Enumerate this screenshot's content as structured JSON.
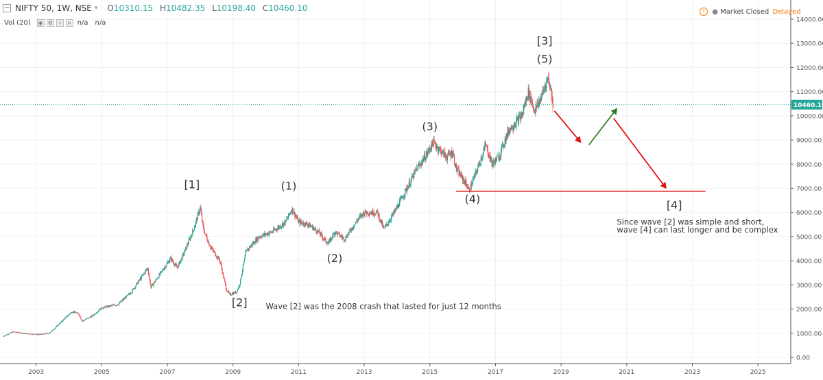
{
  "header": {
    "symbol": "NIFTY 50, 1W, NSE",
    "open_label": "O",
    "open": "10310.15",
    "high_label": "H",
    "high": "10482.35",
    "low_label": "L",
    "low": "10198.40",
    "close_label": "C",
    "close": "10460.10",
    "vol_label": "Vol (20)",
    "vol_value_1": "n/a",
    "vol_value_2": "n/a"
  },
  "market_status": {
    "icon": "clock-alert-icon",
    "closed": "Market Closed",
    "delayed": "Delayed",
    "delayed_color": "#f57c00"
  },
  "colors": {
    "up": "#26a69a",
    "down": "#ef5350",
    "last_price_line": "#26a69a",
    "arrow_down": "#e01010",
    "arrow_up": "#2e7d1f",
    "support_line": "#e01010"
  },
  "chart_data": {
    "type": "candlestick",
    "symbol": "NIFTY 50",
    "interval": "1W",
    "exchange": "NSE",
    "x_ticks": [
      "2003",
      "2005",
      "2007",
      "2009",
      "2011",
      "2013",
      "2015",
      "2017",
      "2019",
      "2021",
      "2023",
      "2025"
    ],
    "y_ticks": [
      "0.00",
      "1000.00",
      "2000.00",
      "3000.00",
      "4000.00",
      "5000.00",
      "6000.00",
      "7000.00",
      "8000.00",
      "9000.00",
      "10000.00",
      "11000.00",
      "12000.00",
      "13000.00",
      "14000.00"
    ],
    "ylim": [
      0,
      14000
    ],
    "xlim": [
      2001.9,
      2026.0
    ],
    "last_price": 10460.1,
    "last_price_label": "10460.10",
    "price_path": [
      [
        2002.0,
        880
      ],
      [
        2002.3,
        1060
      ],
      [
        2002.7,
        980
      ],
      [
        2003.1,
        950
      ],
      [
        2003.4,
        1000
      ],
      [
        2003.6,
        1250
      ],
      [
        2003.9,
        1650
      ],
      [
        2004.1,
        1900
      ],
      [
        2004.3,
        1800
      ],
      [
        2004.4,
        1500
      ],
      [
        2004.7,
        1700
      ],
      [
        2005.0,
        2050
      ],
      [
        2005.5,
        2200
      ],
      [
        2005.9,
        2700
      ],
      [
        2006.3,
        3500
      ],
      [
        2006.4,
        3700
      ],
      [
        2006.5,
        2900
      ],
      [
        2006.8,
        3500
      ],
      [
        2007.1,
        4100
      ],
      [
        2007.3,
        3700
      ],
      [
        2007.5,
        4300
      ],
      [
        2007.8,
        5300
      ],
      [
        2008.0,
        6200
      ],
      [
        2008.1,
        5300
      ],
      [
        2008.3,
        4600
      ],
      [
        2008.6,
        4000
      ],
      [
        2008.8,
        2800
      ],
      [
        2008.9,
        2600
      ],
      [
        2009.1,
        2700
      ],
      [
        2009.2,
        3000
      ],
      [
        2009.4,
        4400
      ],
      [
        2009.8,
        5000
      ],
      [
        2010.2,
        5200
      ],
      [
        2010.6,
        5600
      ],
      [
        2010.8,
        6150
      ],
      [
        2011.0,
        5600
      ],
      [
        2011.3,
        5500
      ],
      [
        2011.6,
        5200
      ],
      [
        2011.9,
        4700
      ],
      [
        2012.1,
        5200
      ],
      [
        2012.4,
        4900
      ],
      [
        2012.8,
        5700
      ],
      [
        2013.0,
        6000
      ],
      [
        2013.4,
        6000
      ],
      [
        2013.6,
        5300
      ],
      [
        2014.0,
        6200
      ],
      [
        2014.3,
        7000
      ],
      [
        2014.6,
        7800
      ],
      [
        2014.9,
        8400
      ],
      [
        2015.1,
        8900
      ],
      [
        2015.5,
        8300
      ],
      [
        2015.7,
        8500
      ],
      [
        2015.8,
        7800
      ],
      [
        2016.1,
        7200
      ],
      [
        2016.2,
        6900
      ],
      [
        2016.5,
        8000
      ],
      [
        2016.7,
        8800
      ],
      [
        2016.9,
        8000
      ],
      [
        2017.1,
        8300
      ],
      [
        2017.4,
        9400
      ],
      [
        2017.8,
        10000
      ],
      [
        2018.0,
        11000
      ],
      [
        2018.2,
        10200
      ],
      [
        2018.4,
        10800
      ],
      [
        2018.6,
        11600
      ],
      [
        2018.7,
        11000
      ],
      [
        2018.75,
        10460
      ]
    ],
    "annotations": [
      {
        "text": "[1]",
        "x": 2007.75,
        "y": 7000
      },
      {
        "text": "[2]",
        "x": 2009.2,
        "y": 2120
      },
      {
        "text": "(1)",
        "x": 2010.7,
        "y": 6950
      },
      {
        "text": "(2)",
        "x": 2012.1,
        "y": 3950
      },
      {
        "text": "(3)",
        "x": 2015.0,
        "y": 9400
      },
      {
        "text": "(4)",
        "x": 2016.3,
        "y": 6400
      },
      {
        "text": "[3]",
        "x": 2018.5,
        "y": 12950
      },
      {
        "text": "(5)",
        "x": 2018.5,
        "y": 12200
      },
      {
        "text": "[4]",
        "x": 2022.45,
        "y": 6150
      }
    ],
    "notes": [
      {
        "text": "Wave [2] was the 2008 crash that lasted for just 12 months",
        "x": 2010.0,
        "y": 2000
      },
      {
        "text": "Since wave [2] was simple and short,",
        "x": 2020.7,
        "y": 5500
      },
      {
        "text": "wave [4] can last longer and be complex",
        "x": 2020.7,
        "y": 5170
      }
    ],
    "projection": [
      {
        "from": [
          2018.8,
          10200
        ],
        "to": [
          2019.6,
          8900
        ],
        "color": "down"
      },
      {
        "from": [
          2019.85,
          8800
        ],
        "to": [
          2020.7,
          10300
        ],
        "color": "up"
      },
      {
        "from": [
          2020.6,
          9900
        ],
        "to": [
          2022.2,
          7000
        ],
        "color": "down"
      }
    ],
    "support_line": {
      "y": 6880,
      "x_from": 2015.8,
      "x_to": 2023.4
    },
    "grid": true,
    "legend": "none"
  }
}
